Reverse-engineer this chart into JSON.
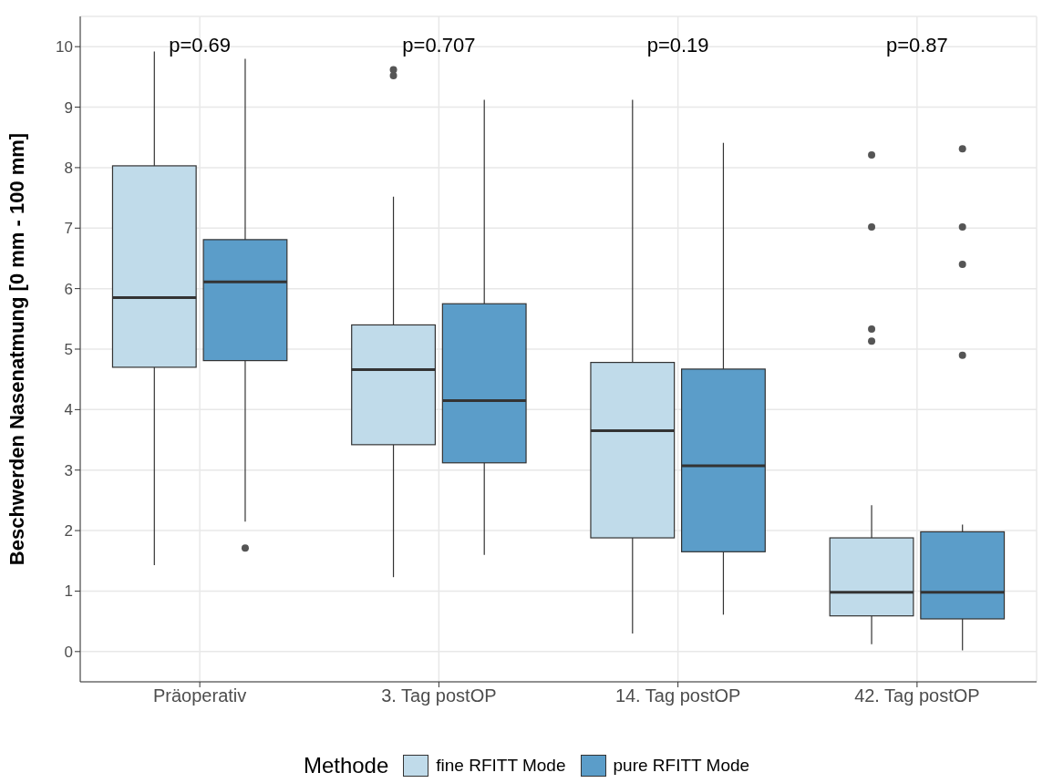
{
  "chart_data": {
    "type": "box",
    "ylabel": "Beschwerden Nasenatmung [0 mm - 100 mm]",
    "legend_title": "Methode",
    "legend": "bottom",
    "grid": true,
    "categories": [
      "Präoperativ",
      "3. Tag postOP",
      "14. Tag postOP",
      "42. Tag postOP"
    ],
    "ylim": [
      -0.5,
      10.5
    ],
    "yticks": [
      0,
      1,
      2,
      3,
      4,
      5,
      6,
      7,
      8,
      9,
      10
    ],
    "series": [
      {
        "name": "fine RFITT Mode",
        "color": "#c0dbea",
        "boxes": [
          {
            "low": 1.43,
            "q1": 4.7,
            "median": 5.85,
            "q3": 8.03,
            "high": 9.92
          },
          {
            "low": 1.23,
            "q1": 3.42,
            "median": 4.66,
            "q3": 5.4,
            "high": 7.52,
            "outliers": [
              9.62,
              9.52
            ]
          },
          {
            "low": 0.3,
            "q1": 1.88,
            "median": 3.65,
            "q3": 4.78,
            "high": 9.12
          },
          {
            "low": 0.12,
            "q1": 0.59,
            "median": 0.98,
            "q3": 1.88,
            "high": 2.42,
            "outliers": [
              8.21,
              7.02,
              5.33,
              5.13
            ]
          }
        ]
      },
      {
        "name": "pure RFITT Mode",
        "color": "#5b9dc9",
        "boxes": [
          {
            "low": 2.15,
            "q1": 4.81,
            "median": 6.11,
            "q3": 6.81,
            "high": 9.8,
            "outliers": [
              1.71
            ]
          },
          {
            "low": 1.6,
            "q1": 3.12,
            "median": 4.15,
            "q3": 5.75,
            "high": 9.12
          },
          {
            "low": 0.61,
            "q1": 1.65,
            "median": 3.07,
            "q3": 4.67,
            "high": 8.41
          },
          {
            "low": 0.02,
            "q1": 0.54,
            "median": 0.98,
            "q3": 1.98,
            "high": 2.1,
            "outliers": [
              8.31,
              7.02,
              6.4,
              4.9
            ]
          }
        ]
      }
    ],
    "annotations": [
      "p=0.69",
      "p=0.707",
      "p=0.19",
      "p=0.87"
    ]
  }
}
